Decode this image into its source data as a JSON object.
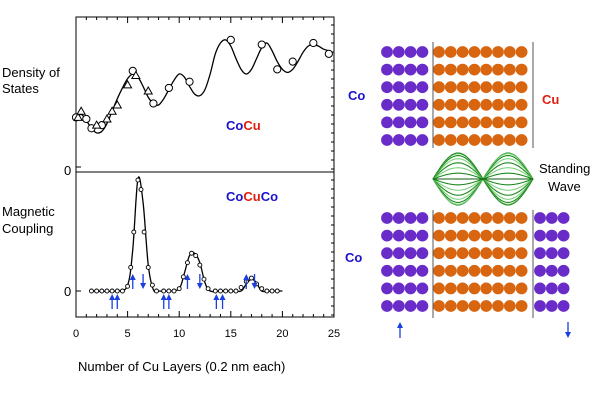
{
  "colors": {
    "co": "#1b12cf",
    "cu": "#e01f0f",
    "co_atom": "#6a2cc8",
    "cu_atom": "#d8650f",
    "arrow": "#1a3ee0",
    "wave": "#1f8a1f"
  },
  "chart_data": [
    {
      "type": "line",
      "title": "Density of States",
      "ylabel_lines": [
        "Density of",
        "States"
      ],
      "zero_label": "0",
      "xlim": [
        0,
        25
      ],
      "ylim": [
        0,
        10
      ],
      "legend": [
        {
          "text": "Co",
          "color": "co"
        },
        {
          "text": "Cu",
          "color": "cu"
        }
      ],
      "series": [
        {
          "name": "fit",
          "x": [
            0,
            0.5,
            1,
            1.5,
            2,
            2.5,
            3,
            3.5,
            4,
            4.5,
            5,
            5.5,
            6,
            6.5,
            7,
            7.5,
            8,
            8.5,
            9,
            9.5,
            10,
            10.5,
            11,
            11.5,
            12,
            12.5,
            13,
            13.5,
            14,
            14.5,
            15,
            15.5,
            16,
            16.5,
            17,
            17.5,
            18,
            18.5,
            19,
            19.5,
            20,
            20.5,
            21,
            21.5,
            22,
            22.5,
            23,
            23.5,
            24,
            24.5
          ],
          "y": [
            3.1,
            3.4,
            3.0,
            2.5,
            2.2,
            2.3,
            2.8,
            3.6,
            4.4,
            5.1,
            5.7,
            6.0,
            5.8,
            5.2,
            4.5,
            4.1,
            4.0,
            4.4,
            5.0,
            5.6,
            6.0,
            5.8,
            5.2,
            4.7,
            4.6,
            5.0,
            6.0,
            7.3,
            8.0,
            8.2,
            7.8,
            7.0,
            6.3,
            6.0,
            6.3,
            7.0,
            7.7,
            8.0,
            7.5,
            6.8,
            6.3,
            6.1,
            6.3,
            6.8,
            7.4,
            7.8,
            7.9,
            7.8,
            7.6,
            7.5
          ]
        },
        {
          "name": "circles",
          "x": [
            0,
            1,
            1.5,
            2.5,
            5.5,
            7.5,
            9,
            11,
            15,
            18,
            19.5,
            21,
            23,
            24.5
          ],
          "y": [
            3.2,
            3.1,
            2.5,
            2.7,
            6.2,
            4.1,
            5.1,
            5.5,
            8.2,
            7.9,
            6.3,
            6.8,
            8.0,
            7.3
          ]
        },
        {
          "name": "triangles",
          "x": [
            0.2,
            0.5,
            2,
            3,
            3.5,
            4,
            5,
            5.8,
            7
          ],
          "y": [
            3.2,
            3.6,
            2.7,
            3.1,
            3.6,
            4.0,
            5.3,
            5.9,
            4.9
          ]
        }
      ]
    },
    {
      "type": "line",
      "title": "Magnetic Coupling",
      "ylabel_lines": [
        "Magnetic",
        "Coupling"
      ],
      "zero_label": "0",
      "zero_label2": "0",
      "xlabel": "Number of Cu Layers  (0.2 nm each)",
      "xticks": [
        0,
        5,
        10,
        15,
        20,
        25
      ],
      "xlim": [
        0,
        25
      ],
      "ylim": [
        -2,
        10
      ],
      "legend": [
        {
          "text": "Co",
          "color": "co"
        },
        {
          "text": "Cu",
          "color": "cu"
        },
        {
          "text": "Co",
          "color": "co"
        }
      ],
      "series": [
        {
          "name": "fit",
          "x": [
            1.5,
            4,
            5,
            5.5,
            6,
            6.5,
            7,
            7.5,
            8,
            9,
            10,
            10.5,
            11,
            11.5,
            12,
            12.5,
            13,
            14,
            15,
            16,
            16.5,
            17,
            17.5,
            18,
            19,
            20
          ],
          "y": [
            0,
            0,
            0.5,
            3.5,
            9.5,
            7.5,
            2.2,
            0.1,
            0,
            0,
            0.2,
            1.5,
            3.0,
            3.2,
            2.4,
            0.7,
            0,
            0,
            0,
            0,
            0.6,
            1.0,
            0.7,
            0,
            0,
            0
          ]
        },
        {
          "name": "points",
          "x": [
            1.5,
            2,
            2.5,
            3,
            3.5,
            4,
            4.5,
            5,
            5.3,
            5.6,
            6,
            6.3,
            6.6,
            7,
            7.4,
            7.8,
            8.5,
            9,
            9.5,
            10,
            10.4,
            10.8,
            11.2,
            11.6,
            12,
            12.4,
            12.8,
            13.5,
            14,
            14.5,
            15,
            15.5,
            16,
            16.5,
            17,
            17.5,
            18,
            18.5,
            19,
            19.5
          ],
          "y": [
            0,
            0,
            0,
            0,
            0,
            0,
            0,
            0.4,
            2.0,
            5.0,
            9.4,
            8.6,
            5.0,
            2.0,
            0.5,
            0,
            0,
            0,
            0,
            0.2,
            1.2,
            2.4,
            3.2,
            3.0,
            2.2,
            1.0,
            0.2,
            0,
            0,
            0,
            0,
            0,
            0.3,
            0.8,
            1.1,
            0.6,
            0.2,
            0,
            0,
            0
          ]
        }
      ],
      "arrows": [
        {
          "x": 3.5,
          "dir": "up"
        },
        {
          "x": 4,
          "dir": "up"
        },
        {
          "x": 5.5,
          "dir": "up"
        },
        {
          "x": 6.5,
          "dir": "down"
        },
        {
          "x": 8.5,
          "dir": "up"
        },
        {
          "x": 9,
          "dir": "up"
        },
        {
          "x": 10.8,
          "dir": "up"
        },
        {
          "x": 12,
          "dir": "down"
        },
        {
          "x": 13.6,
          "dir": "up"
        },
        {
          "x": 14.2,
          "dir": "up"
        },
        {
          "x": 16.5,
          "dir": "up"
        },
        {
          "x": 17.3,
          "dir": "down"
        }
      ]
    }
  ],
  "right_panel": {
    "top_left_label": "Co",
    "top_right_label": "Cu",
    "bottom_left_label": "Co",
    "wave_label_lines": [
      "Standing",
      "Wave"
    ],
    "top_co_cols": 4,
    "top_cu_cols": 8,
    "bottom_co_cols": 4,
    "bottom_cu_cols": 8,
    "bottom_co2_cols": 3,
    "rows": 6,
    "spin_left": "up",
    "spin_right": "down"
  }
}
